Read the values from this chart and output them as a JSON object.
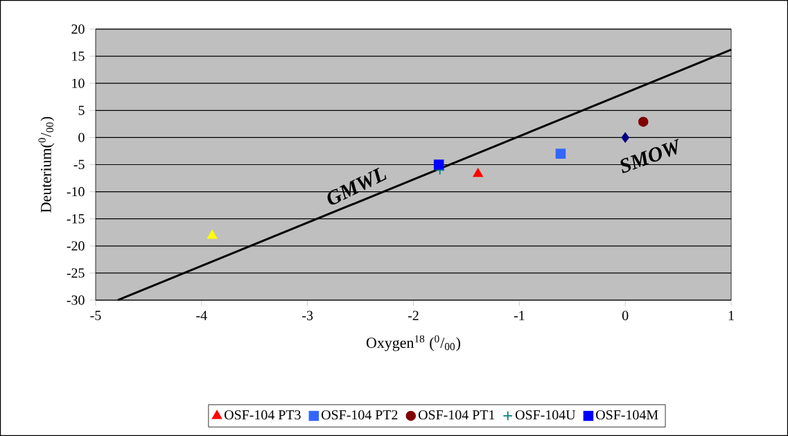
{
  "chart_data": {
    "type": "scatter",
    "xlabel": "Oxygen$^{18}$ ($^{0}$/$_{00}$)",
    "ylabel": "Deuterium($^{0}$/$_{00}$)",
    "xlim": [
      -5,
      1
    ],
    "ylim": [
      -30,
      20
    ],
    "xticks": [
      -5,
      -4,
      -3,
      -2,
      -1,
      0,
      1
    ],
    "yticks": [
      -30,
      -25,
      -20,
      -15,
      -10,
      -5,
      0,
      5,
      10,
      15,
      20
    ],
    "grid": "y",
    "legend": "bottom",
    "series": [
      {
        "type": "line",
        "color": "#000000",
        "marker": "none",
        "line_style": "solid",
        "x": [
          -4.79,
          1
        ],
        "values": [
          -30,
          16.2
        ]
      },
      {
        "color": "#ffff00",
        "marker": "triangle",
        "x": [
          -3.9
        ],
        "values": [
          -18.1
        ]
      },
      {
        "color": "#000080",
        "marker": "diamond",
        "x": [
          0
        ],
        "values": [
          0
        ]
      },
      {
        "name": "OSF-104 PT3",
        "color": "#ff0000",
        "marker": "triangle",
        "x": [
          -1.39
        ],
        "values": [
          -6.7
        ]
      },
      {
        "name": "OSF-104 PT2",
        "color": "#3366ff",
        "marker": "square",
        "x": [
          -0.61
        ],
        "values": [
          -3.0
        ]
      },
      {
        "name": "OSF-104 PT1",
        "color": "#800000",
        "marker": "circle",
        "x": [
          0.17
        ],
        "values": [
          2.9
        ]
      },
      {
        "name": "OSF-104U",
        "color": "#008080",
        "marker": "cross",
        "x": [
          -1.75
        ],
        "values": [
          -6
        ]
      },
      {
        "name": "OSF-104M",
        "color": "#0000ff",
        "marker": "square",
        "x": [
          -1.76
        ],
        "values": [
          -5
        ]
      }
    ],
    "annotations": [
      "GMWL",
      "SMOW"
    ]
  }
}
